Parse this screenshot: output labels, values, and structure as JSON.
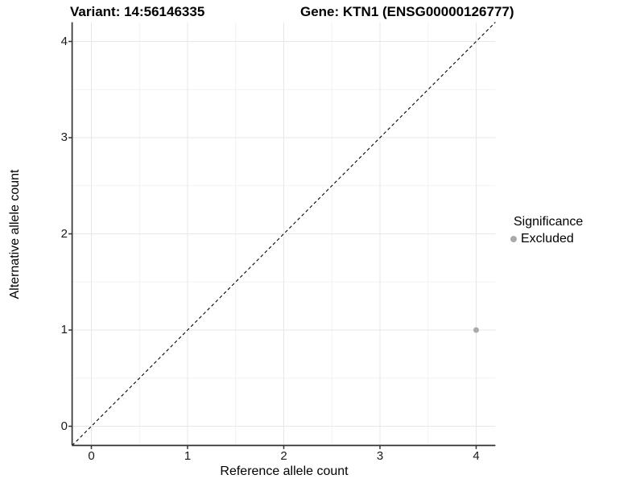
{
  "header": {
    "variant_title": "Variant: 14:56146335",
    "gene_title": "Gene: KTN1 (ENSG00000126777)"
  },
  "legend": {
    "title": "Significance",
    "entries": [
      {
        "label": "Excluded",
        "color": "#aaaaaa"
      }
    ]
  },
  "chart_data": {
    "type": "scatter",
    "title_left": "Variant: 14:56146335",
    "title_right": "Gene: KTN1 (ENSG00000126777)",
    "xlabel": "Reference allele count",
    "ylabel": "Alternative allele count",
    "xlim": [
      -0.2,
      4.2
    ],
    "ylim": [
      -0.2,
      4.2
    ],
    "x_ticks": [
      0,
      1,
      2,
      3,
      4
    ],
    "y_ticks": [
      0,
      1,
      2,
      3,
      4
    ],
    "x_minor_ticks": [
      0.5,
      1.5,
      2.5,
      3.5
    ],
    "y_minor_ticks": [
      0.5,
      1.5,
      2.5,
      3.5
    ],
    "grid": true,
    "legend_position": "right",
    "identity_line": {
      "style": "dashed",
      "color": "#000000",
      "slope": 1,
      "intercept": 0
    },
    "series": [
      {
        "name": "Excluded",
        "color": "#aaaaaa",
        "points": [
          {
            "x": 4,
            "y": 1
          }
        ]
      }
    ],
    "colors": {
      "grid_major": "#e7e7e7",
      "grid_minor": "#f2f2f2",
      "axis": "#333333"
    }
  }
}
